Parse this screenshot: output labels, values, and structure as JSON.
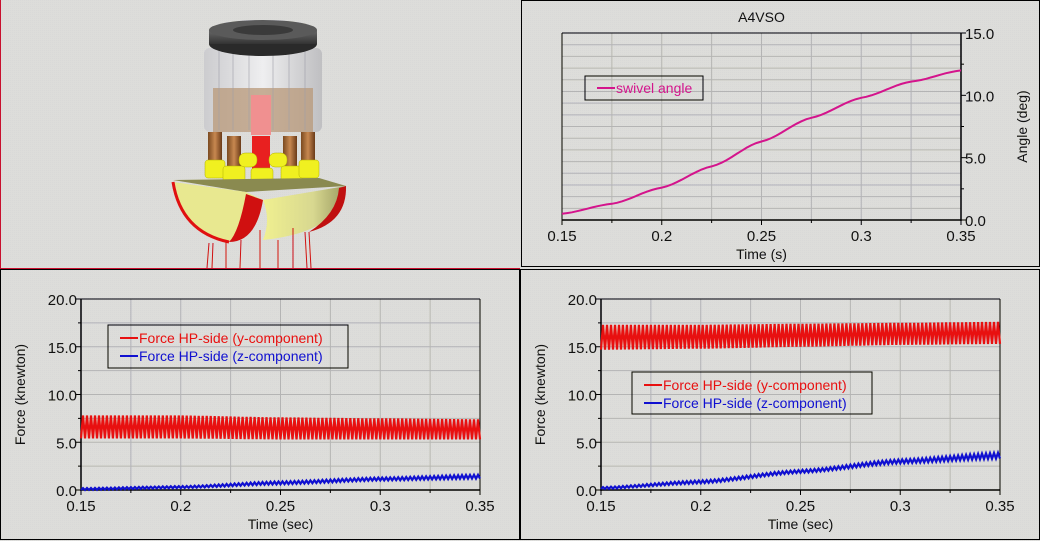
{
  "model_view": {
    "description": "3D model of A4VSO axial piston pump rotating group"
  },
  "chart_data": [
    {
      "id": "angle",
      "type": "line",
      "title": "A4VSO",
      "xlabel": "Time (s)",
      "ylabel": "Angle (deg)",
      "y_axis_side": "right",
      "xlim": [
        0.15,
        0.35
      ],
      "ylim": [
        0.0,
        15.0
      ],
      "x_ticks": [
        "0.15",
        "0.2",
        "0.25",
        "0.3",
        "0.35"
      ],
      "y_ticks": [
        "0.0",
        "5.0",
        "10.0",
        "15.0"
      ],
      "grid": true,
      "legend_position": "top-left",
      "series": [
        {
          "name": "swivel angle",
          "color": "#d4148c",
          "x": [
            0.15,
            0.175,
            0.2,
            0.225,
            0.25,
            0.275,
            0.3,
            0.325,
            0.35
          ],
          "y": [
            0.5,
            1.3,
            2.6,
            4.3,
            6.3,
            8.2,
            9.8,
            11.1,
            12.0
          ]
        }
      ]
    },
    {
      "id": "force-left",
      "type": "line",
      "title": "",
      "xlabel": "Time (sec)",
      "ylabel": "Force (knewton)",
      "y_axis_side": "left",
      "xlim": [
        0.15,
        0.35
      ],
      "ylim": [
        0.0,
        20.0
      ],
      "x_ticks": [
        "0.15",
        "0.2",
        "0.25",
        "0.3",
        "0.35"
      ],
      "y_ticks": [
        "0.0",
        "5.0",
        "10.0",
        "15.0",
        "20.0"
      ],
      "grid": true,
      "legend_position": "top-left",
      "series": [
        {
          "name": "Force HP-side (y-component)",
          "color": "#e81010",
          "oscillating": true,
          "cycles": 100,
          "x": [
            0.15,
            0.2,
            0.25,
            0.3,
            0.35
          ],
          "y_min": [
            5.4,
            5.4,
            5.3,
            5.3,
            5.3
          ],
          "y_max": [
            7.8,
            7.8,
            7.6,
            7.5,
            7.4
          ]
        },
        {
          "name": "Force HP-side (z-component)",
          "color": "#1010d0",
          "oscillating": true,
          "cycles": 100,
          "x": [
            0.15,
            0.2,
            0.25,
            0.3,
            0.35
          ],
          "y_min": [
            0.0,
            0.2,
            0.6,
            1.0,
            1.2
          ],
          "y_max": [
            0.2,
            0.4,
            0.9,
            1.3,
            1.6
          ]
        }
      ]
    },
    {
      "id": "force-right",
      "type": "line",
      "title": "",
      "xlabel": "Time (sec)",
      "ylabel": "Force (knewton)",
      "y_axis_side": "left",
      "xlim": [
        0.15,
        0.35
      ],
      "ylim": [
        0.0,
        20.0
      ],
      "x_ticks": [
        "0.15",
        "0.2",
        "0.25",
        "0.3",
        "0.35"
      ],
      "y_ticks": [
        "0.0",
        "5.0",
        "10.0",
        "15.0",
        "20.0"
      ],
      "grid": true,
      "legend_position": "center-left",
      "series": [
        {
          "name": "Force HP-side (y-component)",
          "color": "#e81010",
          "oscillating": true,
          "cycles": 100,
          "x": [
            0.15,
            0.2,
            0.25,
            0.3,
            0.35
          ],
          "y_min": [
            14.7,
            14.8,
            15.0,
            15.2,
            15.3
          ],
          "y_max": [
            17.3,
            17.3,
            17.4,
            17.5,
            17.6
          ]
        },
        {
          "name": "Force HP-side (z-component)",
          "color": "#1010d0",
          "oscillating": true,
          "cycles": 100,
          "x": [
            0.15,
            0.2,
            0.25,
            0.3,
            0.35
          ],
          "y_min": [
            0.1,
            0.7,
            1.8,
            2.8,
            3.3
          ],
          "y_max": [
            0.3,
            1.0,
            2.1,
            3.2,
            3.9
          ]
        }
      ]
    }
  ]
}
